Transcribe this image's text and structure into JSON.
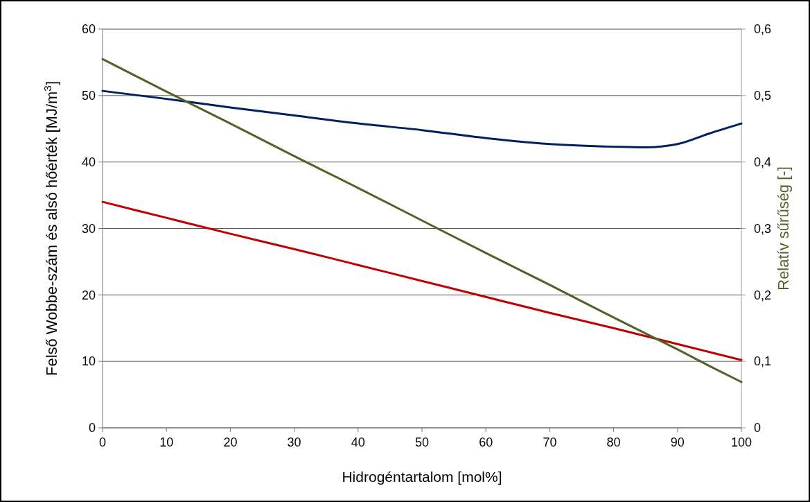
{
  "chart_data": {
    "type": "line",
    "xlabel": "Hidrogéntartalom [mol%]",
    "ylabel": "Felső Wobbe-szám és alsó hőérték [MJ/m$^{3}$]",
    "y2label": "Relatív sűrűség [-]",
    "x": [
      0,
      10,
      20,
      30,
      40,
      50,
      60,
      70,
      80,
      85,
      90,
      95,
      100
    ],
    "xlim": [
      0,
      100
    ],
    "xticks": [
      0,
      10,
      20,
      30,
      40,
      50,
      60,
      70,
      80,
      90,
      100
    ],
    "ylim": [
      0,
      60
    ],
    "yticks": [
      0,
      10,
      20,
      30,
      40,
      50,
      60
    ],
    "y2lim": [
      0,
      0.6
    ],
    "y2ticks": [
      {
        "value": 0,
        "label": "0"
      },
      {
        "value": 0.1,
        "label": "0,1"
      },
      {
        "value": 0.2,
        "label": "0,2"
      },
      {
        "value": 0.3,
        "label": "0,3"
      },
      {
        "value": 0.4,
        "label": "0,4"
      },
      {
        "value": 0.5,
        "label": "0,5"
      },
      {
        "value": 0.6,
        "label": "0,6"
      }
    ],
    "grid": "y",
    "marker": "none",
    "line_style": "solid",
    "series": [
      {
        "color": "#002060",
        "values": [
          50.7,
          49.5,
          48.2,
          47.0,
          45.8,
          44.8,
          43.6,
          42.7,
          42.3,
          42.2,
          42.7,
          44.3,
          45.8
        ]
      },
      {
        "color": "#c00000",
        "values": [
          34,
          31.6,
          29.2,
          26.9,
          24.5,
          22.1,
          19.7,
          17.3,
          15.0,
          13.8,
          12.6,
          11.4,
          10.2
        ]
      },
      {
        "color": "#4f6228",
        "axis": "y2",
        "values": [
          0.555,
          0.506,
          0.458,
          0.409,
          0.361,
          0.312,
          0.263,
          0.215,
          0.166,
          0.142,
          0.118,
          0.093,
          0.069
        ]
      }
    ]
  }
}
